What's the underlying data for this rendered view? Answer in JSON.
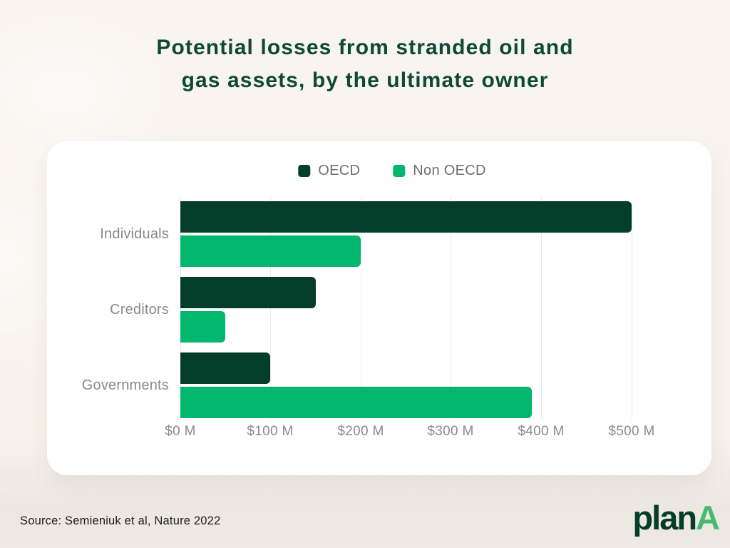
{
  "header": {
    "title_line1": "Potential losses from stranded oil and",
    "title_line2": "gas assets, by the ultimate owner"
  },
  "footer": {
    "source": "Source: Semieniuk et al, Nature 2022",
    "logo_plan": "plan",
    "logo_a": "A"
  },
  "colors": {
    "background": "#f8f2ec",
    "card": "#ffffff",
    "title": "#0d4936",
    "oecd": "#043e2a",
    "non_oecd": "#02b76d",
    "gridline": "#e9e9e9",
    "axis_text": "#8a8a8a",
    "legend_text": "#6e6e6e",
    "source_text": "#1d1d1d",
    "logo_plan": "#043d2b",
    "logo_a": "#46ba71"
  },
  "chart_data": {
    "type": "bar",
    "orientation": "horizontal",
    "title": "Potential losses from stranded oil and gas assets, by the ultimate owner",
    "categories": [
      "Individuals",
      "Creditors",
      "Governments"
    ],
    "series": [
      {
        "name": "OECD",
        "color_key": "oecd",
        "values": [
          500,
          150,
          100
        ]
      },
      {
        "name": "Non OECD",
        "color_key": "non_oecd",
        "values": [
          200,
          50,
          390
        ]
      }
    ],
    "unit": "$M",
    "xlim": [
      0,
      500
    ],
    "x_ticks": [
      {
        "value": 0,
        "label": "$0 M"
      },
      {
        "value": 100,
        "label": "$100 M"
      },
      {
        "value": 200,
        "label": "$200 M"
      },
      {
        "value": 300,
        "label": "$300 M"
      },
      {
        "value": 400,
        "label": "$400 M"
      },
      {
        "value": 500,
        "label": "$500 M"
      }
    ],
    "grid": "vertical",
    "legend_position": "top"
  }
}
